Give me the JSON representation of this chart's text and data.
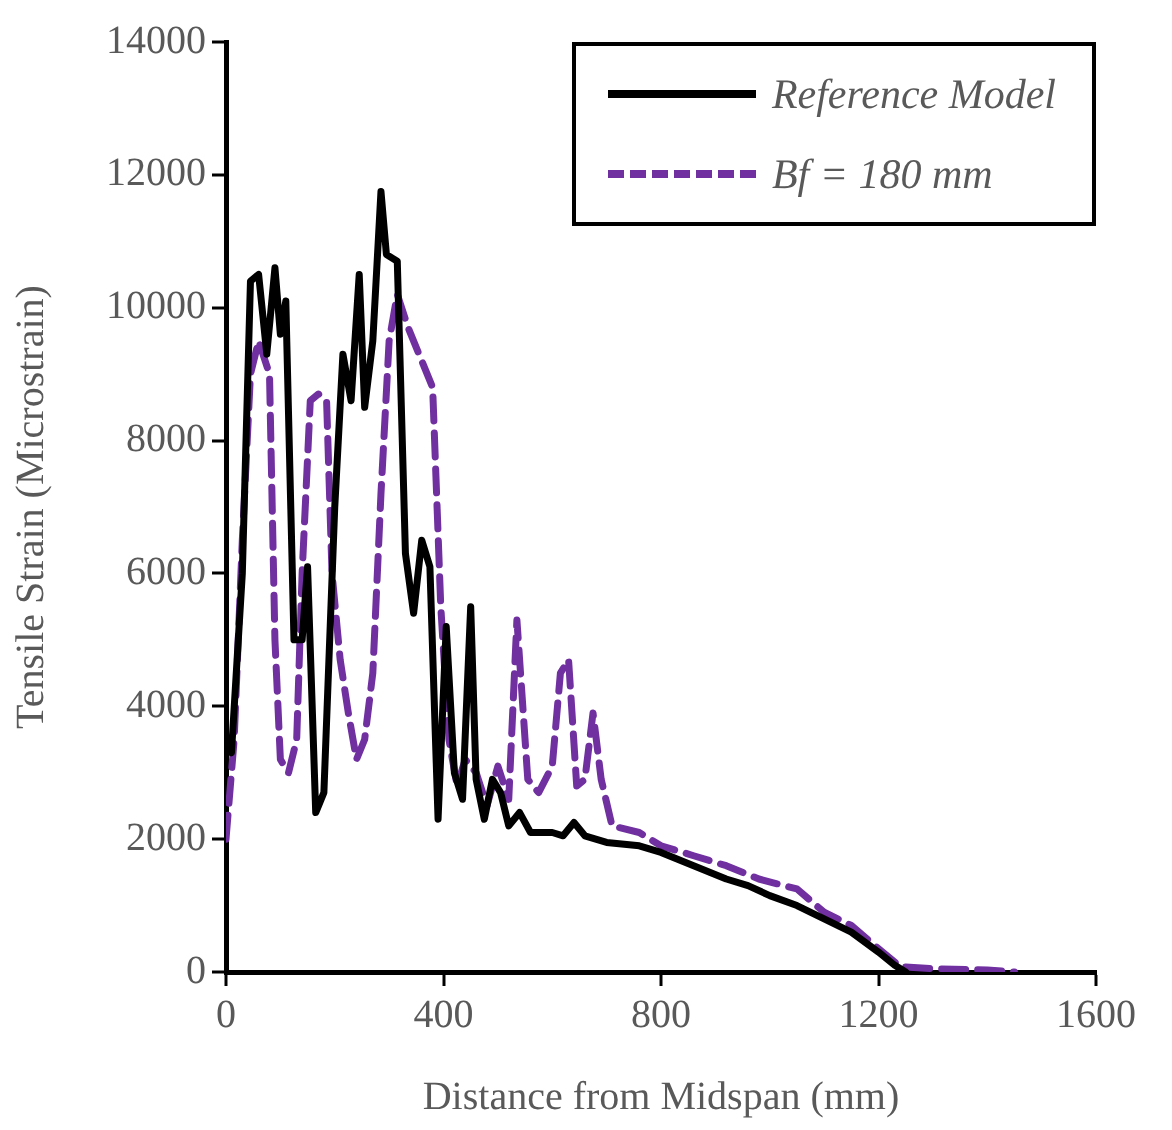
{
  "chart_data": {
    "type": "line",
    "xlabel": "Distance from Midspan (mm)",
    "ylabel": "Tensile Strain (Microstrain)",
    "xlim": [
      0,
      1600
    ],
    "xticks": [
      0,
      400,
      800,
      1200,
      1600
    ],
    "ylim": [
      0,
      14000
    ],
    "yticks": [
      0,
      2000,
      4000,
      6000,
      8000,
      10000,
      12000,
      14000
    ],
    "grid": false,
    "legend": "top right",
    "marker": "none",
    "series": [
      {
        "name": "Reference Model",
        "color": "#000000",
        "line_style": "solid",
        "x": [
          0,
          10,
          30,
          45,
          60,
          75,
          90,
          100,
          110,
          125,
          140,
          150,
          165,
          180,
          200,
          215,
          230,
          245,
          255,
          270,
          285,
          295,
          315,
          330,
          345,
          360,
          375,
          390,
          405,
          420,
          435,
          450,
          460,
          475,
          490,
          505,
          520,
          540,
          560,
          600,
          620,
          640,
          660,
          700,
          760,
          800,
          860,
          920,
          960,
          1000,
          1050,
          1100,
          1150,
          1200,
          1230,
          1250
        ],
        "values": [
          3500,
          3300,
          6000,
          10400,
          10500,
          9300,
          10600,
          9600,
          10100,
          5000,
          5000,
          6100,
          2400,
          2700,
          7000,
          9300,
          8600,
          10500,
          8500,
          9500,
          11750,
          10800,
          10700,
          6300,
          5400,
          6500,
          6100,
          2300,
          5200,
          3000,
          2600,
          5500,
          2900,
          2300,
          2900,
          2700,
          2200,
          2400,
          2100,
          2100,
          2050,
          2250,
          2050,
          1950,
          1900,
          1800,
          1600,
          1400,
          1300,
          1150,
          1000,
          800,
          600,
          300,
          100,
          0
        ]
      },
      {
        "name": "Bf = 180 mm",
        "color": "#7030a0",
        "line_style": "dashed",
        "x": [
          0,
          15,
          30,
          45,
          60,
          80,
          90,
          100,
          115,
          130,
          140,
          155,
          170,
          185,
          195,
          210,
          225,
          240,
          255,
          270,
          285,
          300,
          315,
          335,
          360,
          380,
          395,
          410,
          425,
          440,
          460,
          480,
          500,
          520,
          535,
          555,
          575,
          600,
          615,
          630,
          645,
          660,
          675,
          690,
          710,
          760,
          800,
          860,
          920,
          980,
          1050,
          1100,
          1150,
          1200,
          1240,
          1300,
          1400,
          1450
        ],
        "values": [
          2000,
          3500,
          6500,
          9000,
          9500,
          9000,
          5000,
          3200,
          3000,
          3500,
          6000,
          8600,
          8700,
          8600,
          6000,
          4700,
          3900,
          3200,
          3500,
          4500,
          7200,
          9500,
          10200,
          9700,
          9200,
          8800,
          5500,
          3500,
          2800,
          3200,
          3000,
          2500,
          3100,
          2600,
          5300,
          2900,
          2700,
          3100,
          4500,
          4700,
          2800,
          2900,
          3900,
          2900,
          2200,
          2100,
          1900,
          1750,
          1600,
          1400,
          1250,
          900,
          700,
          350,
          80,
          50,
          30,
          0
        ]
      }
    ]
  }
}
